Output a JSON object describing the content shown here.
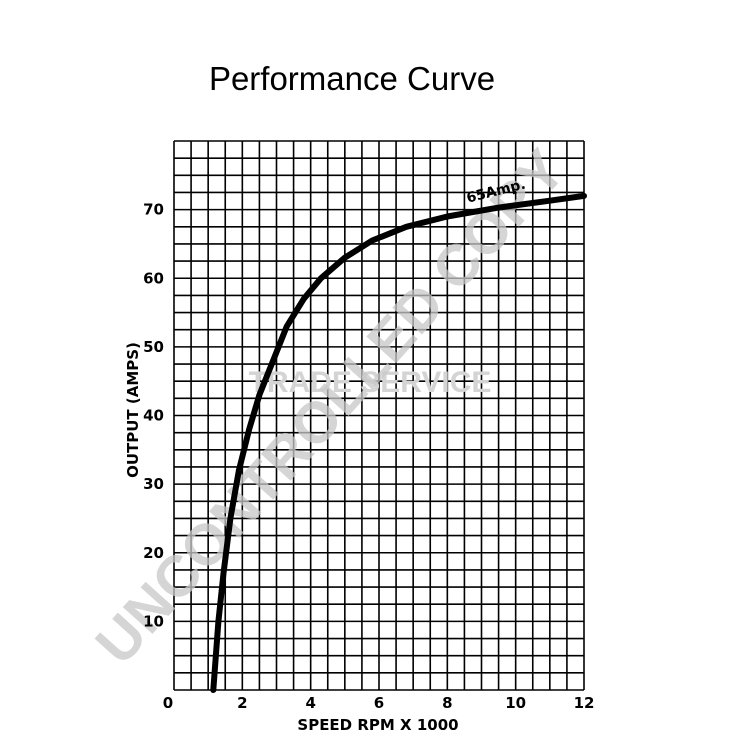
{
  "chart_data": {
    "type": "line",
    "title": "Performance Curve",
    "xlabel": "SPEED RPM X 1000",
    "ylabel": "OUTPUT (AMPS)",
    "xlim": [
      0,
      12
    ],
    "ylim": [
      0,
      80
    ],
    "x_ticks": [
      0,
      2,
      4,
      6,
      8,
      10,
      12
    ],
    "y_ticks": [
      10,
      20,
      30,
      40,
      50,
      60,
      70
    ],
    "grid": true,
    "series": [
      {
        "name": "65Amp.",
        "color": "#000000",
        "x": [
          1.15,
          1.3,
          1.45,
          1.65,
          1.9,
          2.2,
          2.5,
          2.9,
          3.3,
          3.8,
          4.3,
          5.0,
          5.8,
          6.8,
          8.0,
          9.5,
          11.0,
          12.0
        ],
        "y": [
          0,
          10,
          17,
          25,
          32,
          38,
          43,
          48,
          53,
          57,
          60,
          63,
          65.5,
          67.5,
          69,
          70.3,
          71.3,
          72
        ]
      }
    ],
    "annotations": [
      {
        "text": "65Amp.",
        "x": 8.6,
        "y": 71
      }
    ]
  },
  "watermark": {
    "main": "UNCONTROLLED COPY",
    "secondary": "TRADE SERVICE"
  }
}
